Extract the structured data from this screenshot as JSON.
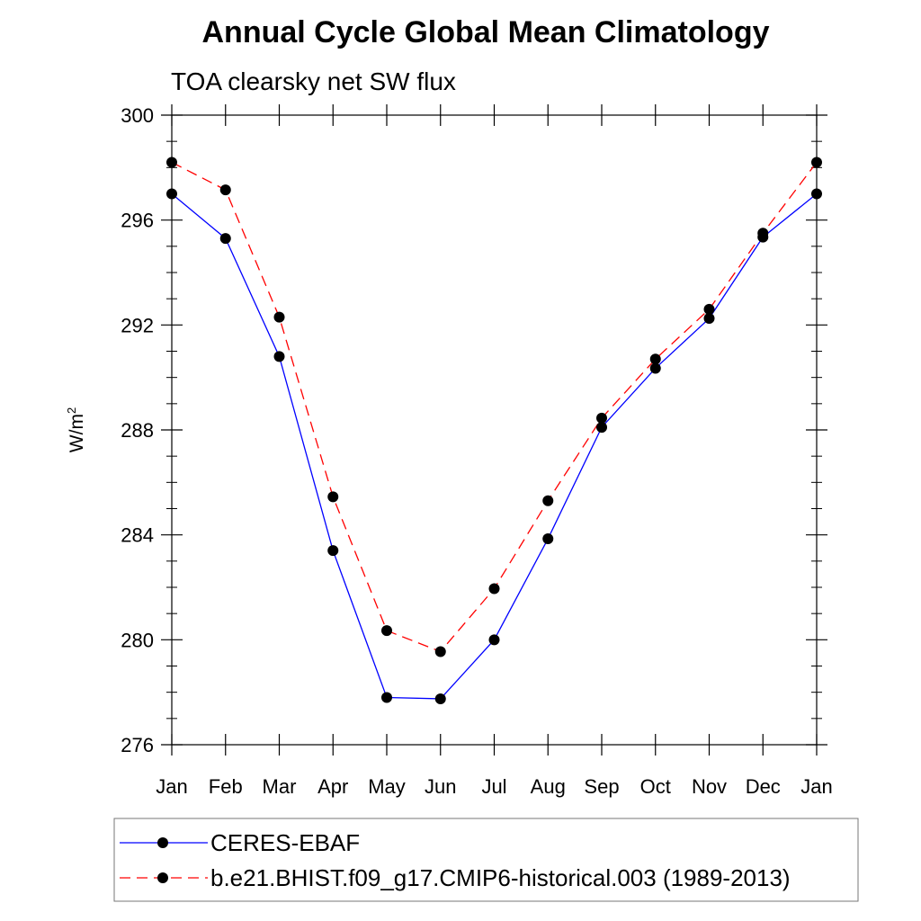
{
  "chart_data": {
    "type": "line",
    "title": "Annual Cycle Global Mean Climatology",
    "subtitle": "TOA clearsky net SW flux",
    "ylabel": "W/m",
    "ylabel_superscript": "2",
    "ylim": [
      276,
      300
    ],
    "yticks": [
      "276",
      "280",
      "284",
      "288",
      "292",
      "296",
      "300"
    ],
    "categories": [
      "Jan",
      "Feb",
      "Mar",
      "Apr",
      "May",
      "Jun",
      "Jul",
      "Aug",
      "Sep",
      "Oct",
      "Nov",
      "Dec",
      "Jan"
    ],
    "series": [
      {
        "name": "CERES-EBAF",
        "color": "#0000ff",
        "style": "solid",
        "values": [
          297.0,
          295.3,
          290.8,
          283.4,
          277.8,
          277.75,
          280.0,
          283.85,
          288.1,
          290.35,
          292.25,
          295.35,
          297.0
        ]
      },
      {
        "name": "b.e21.BHIST.f09_g17.CMIP6-historical.003 (1989-2013)",
        "color": "#ff0000",
        "style": "dashed",
        "values": [
          298.2,
          297.15,
          292.3,
          285.45,
          280.35,
          279.55,
          281.95,
          285.3,
          288.45,
          290.7,
          292.6,
          295.5,
          298.2
        ]
      }
    ],
    "marker_color": "#000000",
    "legend_position": "bottom"
  }
}
